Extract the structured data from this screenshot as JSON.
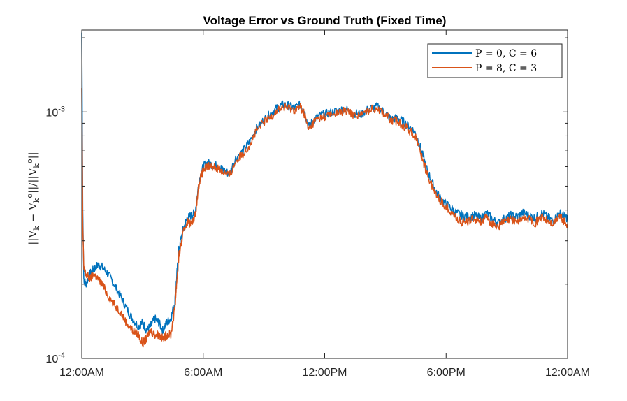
{
  "chart_data": {
    "type": "line",
    "title": "Voltage Error vs Ground Truth (Fixed Time)",
    "ylabel": "||V_k − V_k^o||/||V_k^o||",
    "xlabel": "",
    "yscale": "log",
    "ylim": [
      0.0001,
      0.00215
    ],
    "xlim_hours": [
      0,
      24
    ],
    "x_tick_labels": [
      "12:00AM",
      "6:00AM",
      "12:00PM",
      "6:00PM",
      "12:00AM"
    ],
    "y_tick_labels": [
      {
        "value": 0.0001,
        "mantissa": "10",
        "exponent": "-4"
      },
      {
        "value": 0.001,
        "mantissa": "10",
        "exponent": "-3"
      }
    ],
    "legend_position": "top-right",
    "grid": false,
    "series": [
      {
        "name": "P = 0, C = 6",
        "color": "#0072BD",
        "x": [
          0,
          0.02,
          0.05,
          0.1,
          0.2,
          0.4,
          0.6,
          0.8,
          1.0,
          1.3,
          1.6,
          1.9,
          2.2,
          2.5,
          2.8,
          3.0,
          3.2,
          3.4,
          3.6,
          3.8,
          4.0,
          4.2,
          4.4,
          4.6,
          4.7,
          4.8,
          5.0,
          5.2,
          5.4,
          5.6,
          5.8,
          6.0,
          6.2,
          6.5,
          6.8,
          7.0,
          7.3,
          7.6,
          8.0,
          8.3,
          8.6,
          9.0,
          9.3,
          9.6,
          9.9,
          10.2,
          10.5,
          10.8,
          11.0,
          11.2,
          11.5,
          11.8,
          12.2,
          12.6,
          13.0,
          13.4,
          13.8,
          14.2,
          14.6,
          15.0,
          15.3,
          15.6,
          15.9,
          16.2,
          16.5,
          16.8,
          17.0,
          17.3,
          17.6,
          17.9,
          18.2,
          18.5,
          18.8,
          19.1,
          19.4,
          19.7,
          20.0,
          20.3,
          20.6,
          20.9,
          21.2,
          21.5,
          21.8,
          22.1,
          22.4,
          22.7,
          23.0,
          23.3,
          23.6,
          23.8,
          24.0
        ],
        "y": [
          0.0021,
          0.0011,
          0.0004,
          0.00021,
          0.0002,
          0.00022,
          0.00023,
          0.00024,
          0.000235,
          0.00022,
          0.0002,
          0.00018,
          0.00016,
          0.000145,
          0.000135,
          0.00014,
          0.00013,
          0.000135,
          0.000145,
          0.00014,
          0.00013,
          0.00014,
          0.000145,
          0.00017,
          0.00022,
          0.00028,
          0.00033,
          0.00037,
          0.00038,
          0.00039,
          0.00053,
          0.0006,
          0.00062,
          0.00061,
          0.0006,
          0.00058,
          0.00056,
          0.00065,
          0.0007,
          0.00076,
          0.00085,
          0.00093,
          0.00098,
          0.00103,
          0.00107,
          0.00106,
          0.00104,
          0.00107,
          0.001,
          0.00087,
          0.00094,
          0.00097,
          0.00099,
          0.00101,
          0.00103,
          0.00099,
          0.00098,
          0.00103,
          0.00105,
          0.00099,
          0.00093,
          0.00095,
          0.00091,
          0.00087,
          0.00082,
          0.00069,
          0.0006,
          0.00052,
          0.00046,
          0.00043,
          0.00041,
          0.00039,
          0.00038,
          0.000375,
          0.00038,
          0.00037,
          0.00039,
          0.000365,
          0.000355,
          0.00037,
          0.00038,
          0.000375,
          0.00039,
          0.00038,
          0.00037,
          0.00039,
          0.000375,
          0.00036,
          0.00039,
          0.00038,
          0.00037
        ]
      },
      {
        "name": "P = 8, C = 3",
        "color": "#D95319",
        "x": [
          0,
          0.02,
          0.05,
          0.1,
          0.2,
          0.4,
          0.6,
          0.8,
          1.0,
          1.3,
          1.6,
          1.9,
          2.2,
          2.5,
          2.8,
          3.0,
          3.2,
          3.4,
          3.6,
          3.8,
          4.0,
          4.2,
          4.4,
          4.6,
          4.7,
          4.8,
          5.0,
          5.2,
          5.4,
          5.6,
          5.8,
          6.0,
          6.2,
          6.5,
          6.8,
          7.0,
          7.3,
          7.6,
          8.0,
          8.3,
          8.6,
          9.0,
          9.3,
          9.6,
          9.9,
          10.2,
          10.5,
          10.8,
          11.0,
          11.2,
          11.5,
          11.8,
          12.2,
          12.6,
          13.0,
          13.4,
          13.8,
          14.2,
          14.6,
          15.0,
          15.3,
          15.6,
          15.9,
          16.2,
          16.5,
          16.8,
          17.0,
          17.3,
          17.6,
          17.9,
          18.2,
          18.5,
          18.8,
          19.1,
          19.4,
          19.7,
          20.0,
          20.3,
          20.6,
          20.9,
          21.2,
          21.5,
          21.8,
          22.1,
          22.4,
          22.7,
          23.0,
          23.3,
          23.6,
          23.8,
          24.0
        ],
        "y": [
          0.00125,
          0.00075,
          0.00035,
          0.00023,
          0.00022,
          0.00021,
          0.00022,
          0.00021,
          0.0002,
          0.00018,
          0.000165,
          0.000155,
          0.00014,
          0.00013,
          0.000125,
          0.000115,
          0.00012,
          0.00013,
          0.000125,
          0.000125,
          0.00012,
          0.000125,
          0.000125,
          0.00016,
          0.00021,
          0.00026,
          0.00032,
          0.00036,
          0.00035,
          0.00038,
          0.00052,
          0.00058,
          0.0006,
          0.0006,
          0.00059,
          0.00057,
          0.00055,
          0.00063,
          0.00068,
          0.00074,
          0.00083,
          0.00091,
          0.00095,
          0.00101,
          0.00104,
          0.00104,
          0.00102,
          0.00105,
          0.00098,
          0.00085,
          0.00092,
          0.00095,
          0.00097,
          0.00099,
          0.00101,
          0.00098,
          0.00097,
          0.00102,
          0.00104,
          0.00098,
          0.00092,
          0.00092,
          0.00088,
          0.00084,
          0.00079,
          0.00066,
          0.00058,
          0.0005,
          0.00045,
          0.00042,
          0.0004,
          0.00037,
          0.000355,
          0.00036,
          0.00037,
          0.00036,
          0.00037,
          0.00035,
          0.000345,
          0.00036,
          0.000365,
          0.00036,
          0.00037,
          0.00037,
          0.000355,
          0.000375,
          0.00036,
          0.00035,
          0.00038,
          0.00036,
          0.00035
        ]
      }
    ]
  }
}
